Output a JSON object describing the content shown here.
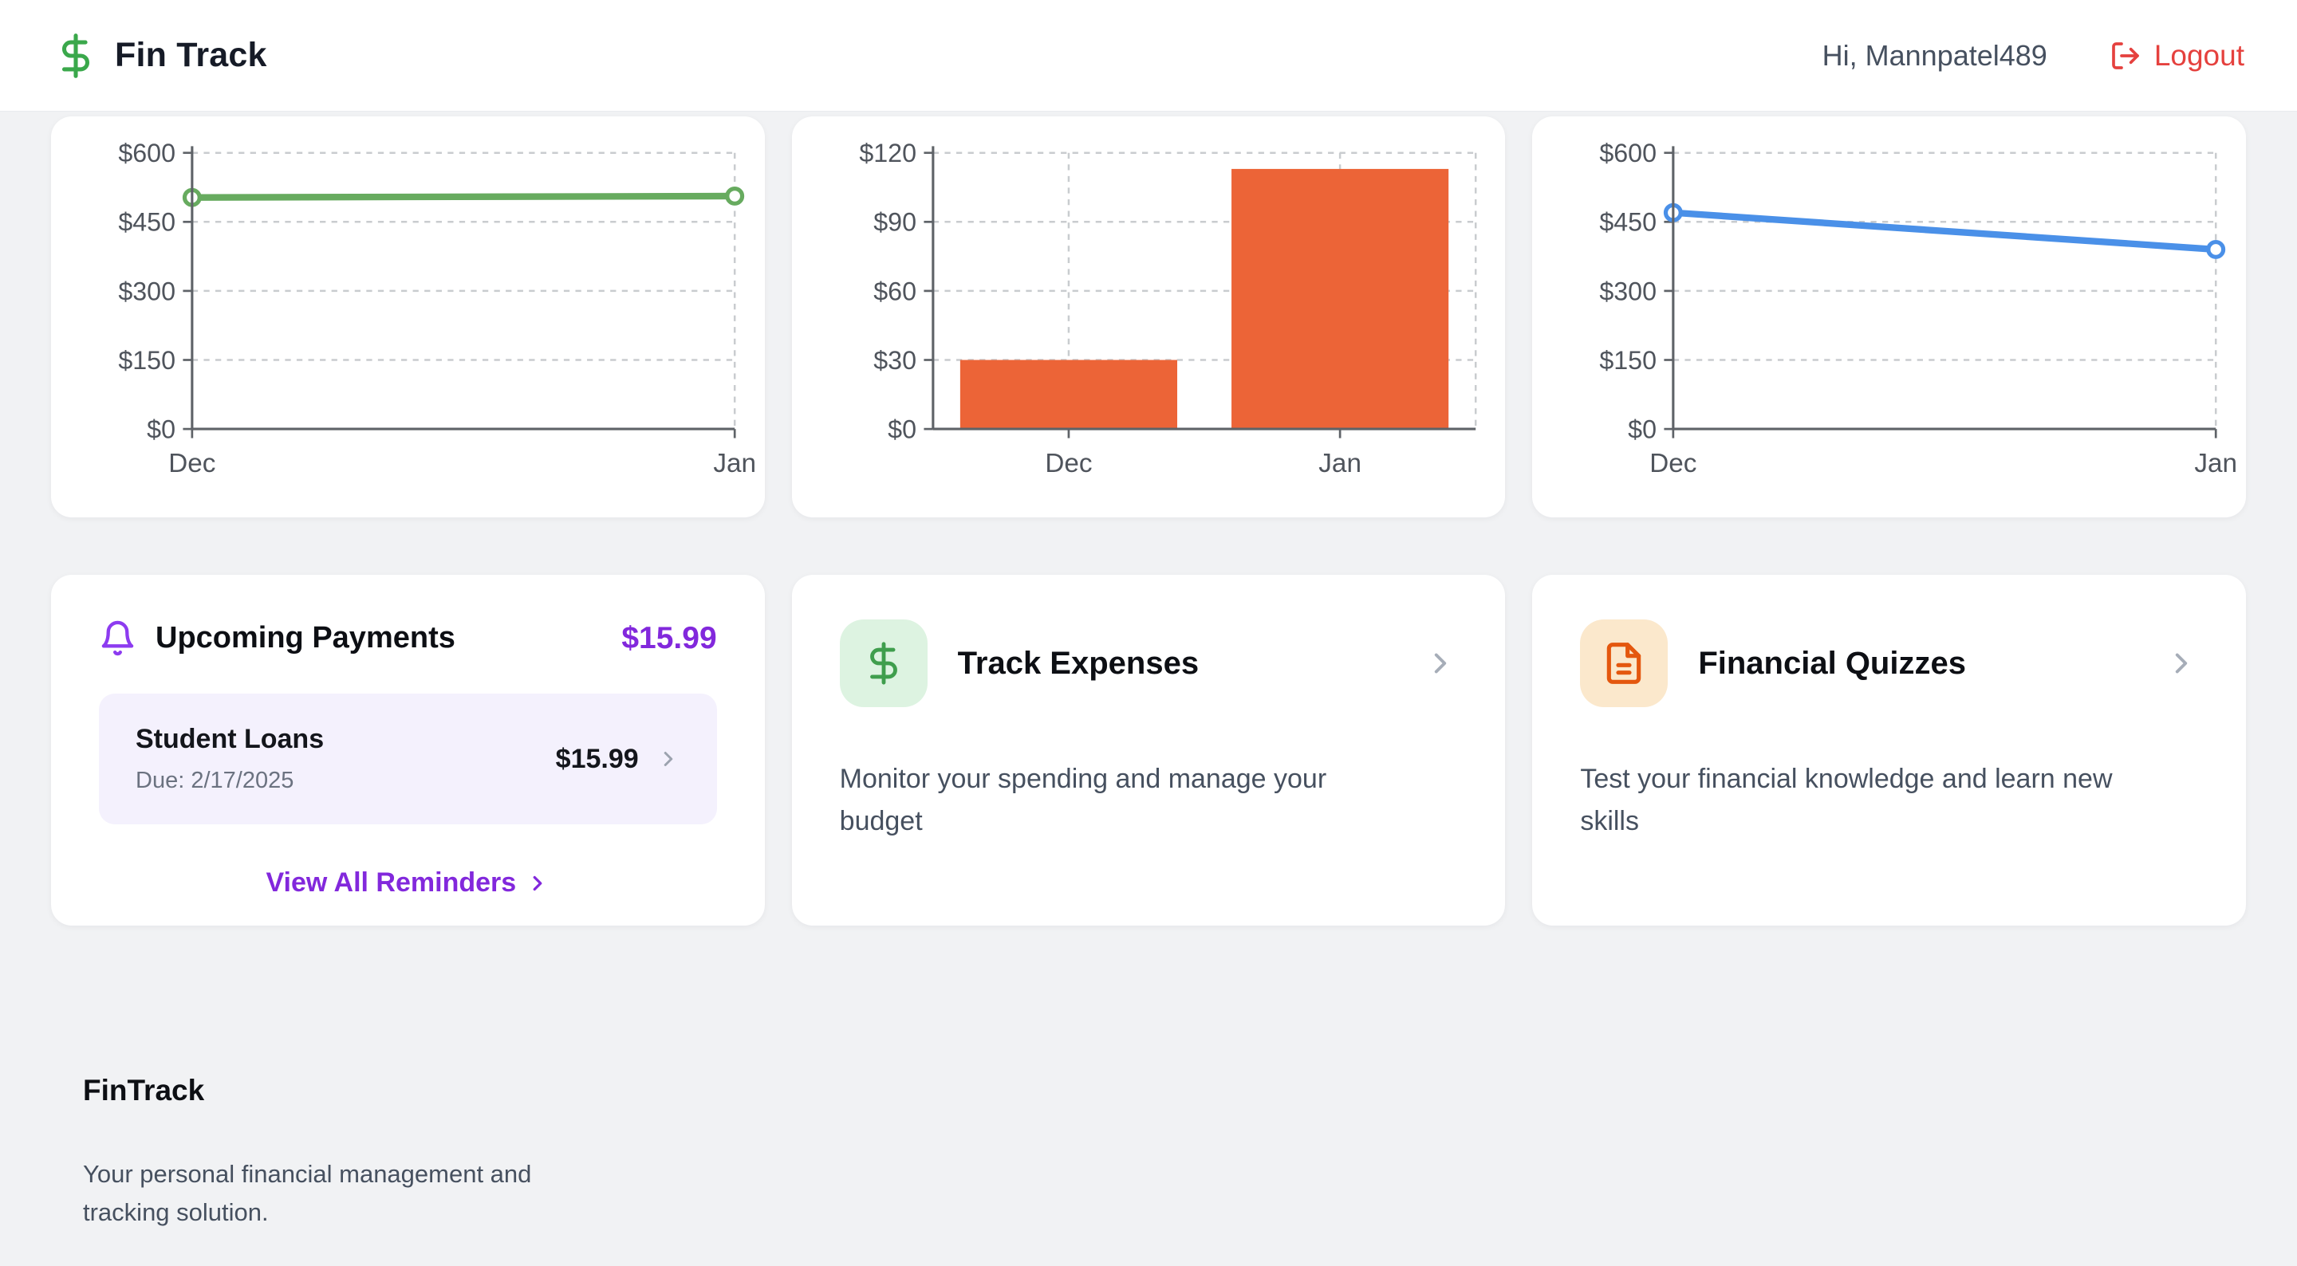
{
  "header": {
    "app_title": "Fin Track",
    "greeting": "Hi, Mannpatel489",
    "logout_label": "Logout",
    "brand_color": "#3aa84b",
    "logout_color": "#e5413e"
  },
  "chart_data": [
    {
      "type": "line",
      "x": [
        "Dec",
        "Jan"
      ],
      "series": [
        {
          "name": "savings",
          "values": [
            503,
            506
          ]
        }
      ],
      "yticks": [
        0,
        150,
        300,
        450,
        600
      ],
      "ylim": [
        0,
        600
      ],
      "tick_prefix": "$",
      "grid": true,
      "color": "#67ab5f"
    },
    {
      "type": "bar",
      "categories": [
        "Dec",
        "Jan"
      ],
      "values": [
        30,
        113
      ],
      "yticks": [
        0,
        30,
        60,
        90,
        120
      ],
      "ylim": [
        0,
        120
      ],
      "tick_prefix": "$",
      "grid": true,
      "color": "#ec6437"
    },
    {
      "type": "line",
      "x": [
        "Dec",
        "Jan"
      ],
      "series": [
        {
          "name": "balance",
          "values": [
            470,
            390
          ]
        }
      ],
      "yticks": [
        0,
        150,
        300,
        450,
        600
      ],
      "ylim": [
        0,
        600
      ],
      "tick_prefix": "$",
      "grid": true,
      "color": "#4a90e8"
    }
  ],
  "cards": {
    "upcoming_payments": {
      "title": "Upcoming Payments",
      "total": "$15.99",
      "accent": "#8228dc",
      "items": [
        {
          "name": "Student Loans",
          "due": "Due: 2/17/2025",
          "amount": "$15.99"
        }
      ],
      "link_label": "View All Reminders"
    },
    "track_expenses": {
      "title": "Track Expenses",
      "description": "Monitor your spending and manage your budget",
      "icon": "dollar-icon",
      "icon_color": "#3f9e4d",
      "icon_bg": "#ddf3e1"
    },
    "financial_quizzes": {
      "title": "Financial Quizzes",
      "description": "Test your financial knowledge and learn new skills",
      "icon": "file-text-icon",
      "icon_color": "#e4570e",
      "icon_bg": "#fbe8cc"
    }
  },
  "footer": {
    "title": "FinTrack",
    "tagline": "Your personal financial management and tracking solution."
  }
}
